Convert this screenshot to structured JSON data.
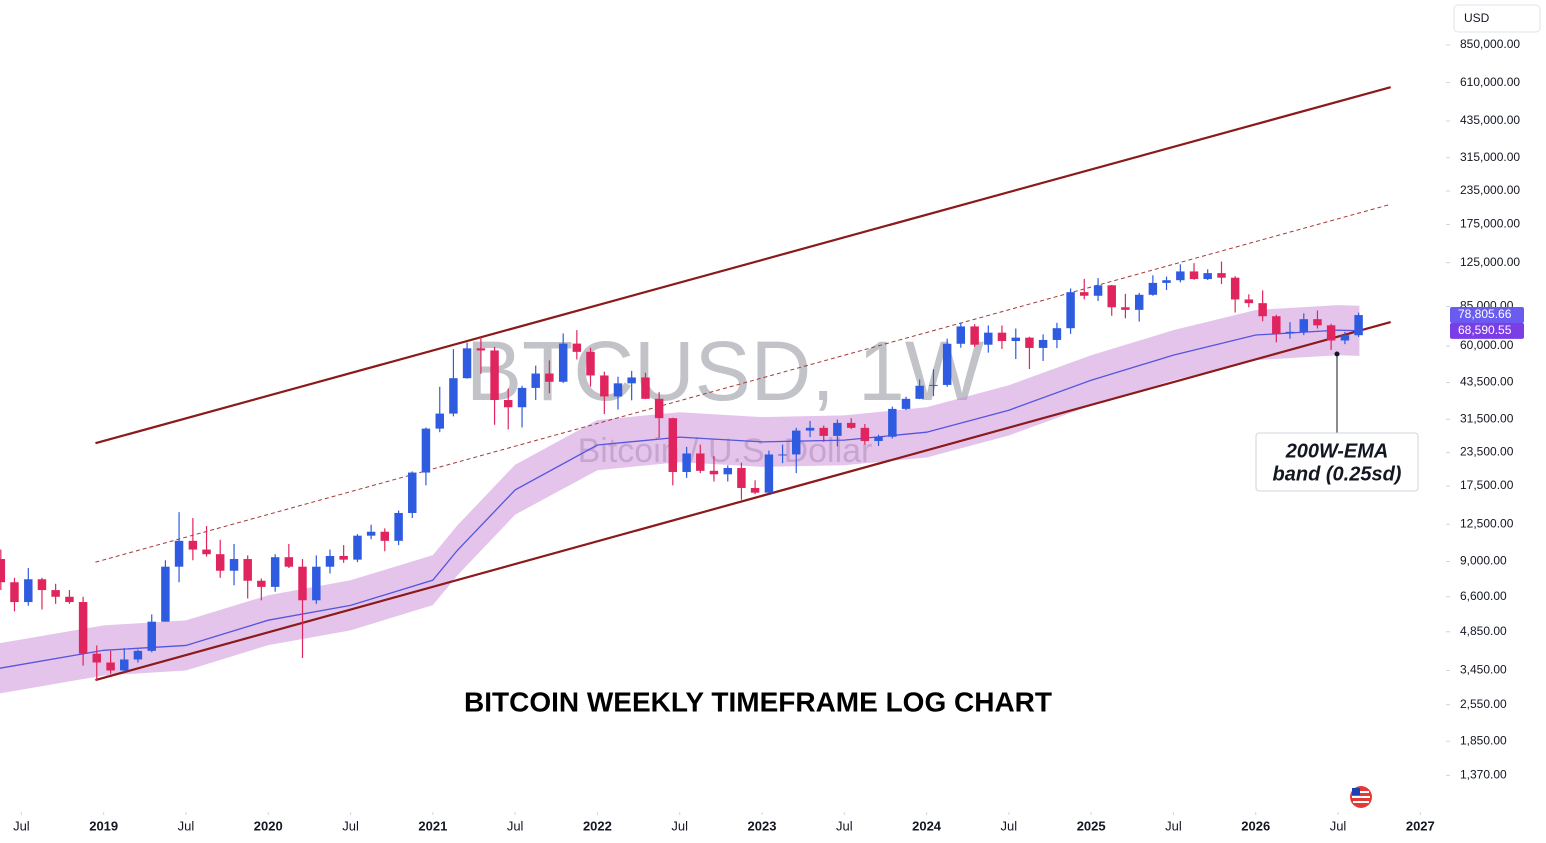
{
  "chart_data": {
    "type": "candlestick",
    "title": "BITCOIN WEEKLY TIMEFRAME LOG CHART",
    "watermark": {
      "symbol": "BTCUSD, 1W",
      "name": "Bitcoin / U.S. Dollar"
    },
    "currency": "USD",
    "log_scale": true,
    "xlim": [
      2018.37,
      2027.15
    ],
    "ylim": [
      1010,
      1262000
    ],
    "xticks": [
      {
        "value": 2018.5,
        "label": "Jul"
      },
      2019,
      {
        "value": 2019.5,
        "label": "Jul"
      },
      2020,
      {
        "value": 2020.5,
        "label": "Jul"
      },
      2021,
      {
        "value": 2021.5,
        "label": "Jul"
      },
      2022,
      {
        "value": 2022.5,
        "label": "Jul"
      },
      2023,
      {
        "value": 2023.5,
        "label": "Jul"
      },
      2024,
      {
        "value": 2024.5,
        "label": "Jul"
      },
      2025,
      {
        "value": 2025.5,
        "label": "Jul"
      },
      2026,
      {
        "value": 2026.5,
        "label": "Jul"
      },
      2027
    ],
    "yticks": [
      {
        "value": 850000,
        "label": "850,000.00"
      },
      {
        "value": 610000,
        "label": "610,000.00"
      },
      {
        "value": 435000,
        "label": "435,000.00"
      },
      {
        "value": 315000,
        "label": "315,000.00"
      },
      {
        "value": 235000,
        "label": "235,000.00"
      },
      {
        "value": 175000,
        "label": "175,000.00"
      },
      {
        "value": 125000,
        "label": "125,000.00"
      },
      {
        "value": 85000,
        "label": "85,000.00"
      },
      {
        "value": 60000,
        "label": "60,000.00"
      },
      {
        "value": 43500,
        "label": "43,500.00"
      },
      {
        "value": 31500,
        "label": "31,500.00"
      },
      {
        "value": 23500,
        "label": "23,500.00"
      },
      {
        "value": 17500,
        "label": "17,500.00"
      },
      {
        "value": 12500,
        "label": "12,500.00"
      },
      {
        "value": 9000,
        "label": "9,000.00"
      },
      {
        "value": 6600,
        "label": "6,600.00"
      },
      {
        "value": 4850,
        "label": "4,850.00"
      },
      {
        "value": 3450,
        "label": "3,450.00"
      },
      {
        "value": 2550,
        "label": "2,550.00"
      },
      {
        "value": 1850,
        "label": "1,850.00"
      },
      {
        "value": 1370,
        "label": "1,370.00"
      }
    ],
    "up_color": "#2f5be0",
    "down_color": "#e0245e",
    "candles": {
      "x": [
        2018.375,
        2018.458,
        2018.542,
        2018.625,
        2018.708,
        2018.792,
        2018.875,
        2018.958,
        2019.042,
        2019.125,
        2019.208,
        2019.292,
        2019.375,
        2019.458,
        2019.542,
        2019.625,
        2019.708,
        2019.792,
        2019.875,
        2019.958,
        2020.042,
        2020.125,
        2020.208,
        2020.292,
        2020.375,
        2020.458,
        2020.542,
        2020.625,
        2020.708,
        2020.792,
        2020.875,
        2020.958,
        2021.042,
        2021.125,
        2021.208,
        2021.292,
        2021.375,
        2021.458,
        2021.542,
        2021.625,
        2021.708,
        2021.792,
        2021.875,
        2021.958,
        2022.042,
        2022.125,
        2022.208,
        2022.292,
        2022.375,
        2022.458,
        2022.542,
        2022.625,
        2022.708,
        2022.792,
        2022.875,
        2022.958,
        2023.042,
        2023.125,
        2023.208,
        2023.292,
        2023.375,
        2023.458,
        2023.542,
        2023.625,
        2023.708,
        2023.792,
        2023.875,
        2023.958,
        2024.042,
        2024.125,
        2024.208,
        2024.292,
        2024.375,
        2024.458,
        2024.542,
        2024.625,
        2024.708,
        2024.792,
        2024.875,
        2024.958,
        2025.042,
        2025.125,
        2025.208,
        2025.292,
        2025.375,
        2025.458,
        2025.542,
        2025.625,
        2025.708,
        2025.792,
        2025.875,
        2025.958,
        2026.042,
        2026.125,
        2026.208,
        2026.292,
        2026.375,
        2026.458,
        2026.542,
        2026.625
      ],
      "open": [
        9200,
        7500,
        6300,
        7700,
        7000,
        6600,
        6300,
        4000,
        3700,
        3450,
        3800,
        4100,
        5300,
        8600,
        10800,
        10000,
        9600,
        8300,
        9200,
        7600,
        7200,
        9350,
        8600,
        6400,
        8600,
        9450,
        9150,
        11300,
        11700,
        10800,
        13800,
        19700,
        29000,
        33100,
        45200,
        58800,
        57700,
        37300,
        35000,
        41500,
        47100,
        43800,
        61300,
        57000,
        46300,
        38500,
        43200,
        45500,
        37700,
        31800,
        19800,
        23300,
        20000,
        19400,
        20500,
        17200,
        16500,
        23100,
        23100,
        28500,
        29200,
        27200,
        30500,
        29200,
        26000,
        27000,
        34500,
        37700,
        42300,
        42600,
        61200,
        71300,
        60700,
        67500,
        62700,
        64600,
        59000,
        63300,
        70200,
        96400,
        93400,
        102400,
        84400,
        82500,
        94200,
        104600,
        107100,
        115700,
        108200,
        114000,
        109500,
        90400,
        87500,
        78000,
        67000,
        68000,
        76000,
        72000,
        63000,
        66000
      ],
      "high": [
        10000,
        7800,
        8500,
        7800,
        7400,
        7000,
        6600,
        4300,
        4100,
        4200,
        4150,
        5650,
        9100,
        13900,
        13200,
        12300,
        10900,
        10500,
        9500,
        7750,
        9600,
        10500,
        9200,
        9500,
        10000,
        10400,
        11450,
        12450,
        12050,
        14100,
        19900,
        29300,
        41900,
        58400,
        61800,
        64900,
        59600,
        41300,
        42300,
        50500,
        52900,
        67000,
        69000,
        59100,
        47900,
        45800,
        48200,
        47400,
        40000,
        31900,
        24700,
        25200,
        22800,
        21000,
        21500,
        18400,
        23900,
        25200,
        29200,
        31000,
        29800,
        31400,
        31800,
        30200,
        27500,
        35200,
        38400,
        44700,
        48900,
        64000,
        73800,
        72700,
        71900,
        71900,
        70000,
        65100,
        66500,
        73600,
        99600,
        108300,
        109100,
        102800,
        95000,
        95800,
        111900,
        110600,
        123200,
        124500,
        117900,
        126200,
        111000,
        94600,
        97900,
        79000,
        74000,
        80000,
        82000,
        73000,
        68000,
        80500
      ],
      "low": [
        7000,
        5800,
        6100,
        5900,
        6200,
        6200,
        3600,
        3150,
        3350,
        3400,
        3700,
        4050,
        5300,
        7500,
        9100,
        9400,
        7800,
        7300,
        6500,
        6400,
        6900,
        8500,
        3850,
        6200,
        8100,
        8900,
        8950,
        10950,
        9850,
        10400,
        13200,
        17600,
        28100,
        32300,
        45000,
        47000,
        30000,
        28800,
        29300,
        37300,
        39600,
        43300,
        53300,
        42000,
        33000,
        34300,
        37200,
        37600,
        26700,
        17600,
        18800,
        19600,
        18200,
        18200,
        15500,
        16300,
        16500,
        21400,
        19600,
        26900,
        25800,
        24800,
        28900,
        25200,
        24900,
        26600,
        34100,
        37600,
        38600,
        41900,
        59100,
        59600,
        56600,
        58500,
        53500,
        49000,
        52600,
        58900,
        66800,
        90500,
        89200,
        78300,
        76600,
        74400,
        93400,
        98200,
        105100,
        107500,
        107300,
        103500,
        80600,
        84400,
        74600,
        62000,
        64000,
        66000,
        70000,
        58000,
        61000,
        65000
      ],
      "close": [
        7500,
        6300,
        7700,
        7000,
        6600,
        6300,
        4000,
        3700,
        3450,
        3800,
        4100,
        5300,
        8600,
        10800,
        10000,
        9600,
        8300,
        9200,
        7600,
        7200,
        9350,
        8600,
        6400,
        8600,
        9450,
        9150,
        11300,
        11700,
        10800,
        13800,
        19700,
        29000,
        33100,
        45200,
        58800,
        57700,
        37300,
        35000,
        41500,
        47100,
        43800,
        61300,
        57000,
        46300,
        38500,
        43200,
        45500,
        37700,
        31800,
        19800,
        23300,
        20000,
        19400,
        20500,
        17200,
        16500,
        23100,
        23100,
        28500,
        29200,
        27200,
        30500,
        29200,
        26000,
        27000,
        34500,
        37700,
        42300,
        42600,
        61200,
        71300,
        60700,
        67500,
        62700,
        64600,
        59000,
        63300,
        70200,
        96400,
        93400,
        102400,
        84400,
        82500,
        94200,
        104600,
        107100,
        115700,
        108200,
        114000,
        109500,
        90400,
        87500,
        78000,
        67000,
        68000,
        76000,
        72000,
        63000,
        66000,
        78805.66
      ]
    },
    "ema": {
      "color": "#5555dd",
      "band_color": "#c98ad8",
      "x": [
        2018.37,
        2019.0,
        2019.5,
        2020.0,
        2020.5,
        2021.0,
        2021.15,
        2021.5,
        2022.0,
        2022.5,
        2023.0,
        2023.5,
        2024.0,
        2024.5,
        2025.0,
        2025.5,
        2026.0,
        2026.5,
        2026.63
      ],
      "values": [
        3520,
        4120,
        4300,
        5370,
        6120,
        7640,
        9950,
        16900,
        25100,
        26900,
        25800,
        26200,
        28100,
        34100,
        44400,
        55400,
        66100,
        69000,
        68590.55
      ],
      "upper": [
        4390,
        5130,
        5360,
        6690,
        7630,
        9520,
        12400,
        21100,
        31300,
        33500,
        32100,
        32600,
        35000,
        42500,
        55300,
        69000,
        82400,
        86000,
        85500
      ],
      "lower": [
        2820,
        3300,
        3450,
        4310,
        4910,
        6130,
        7980,
        13600,
        20100,
        21600,
        20700,
        21000,
        22500,
        27300,
        35600,
        44400,
        53000,
        55300,
        55000
      ]
    },
    "lines": [
      {
        "x": [
          2018.95,
          2026.82
        ],
        "y": [
          25500,
          586000
        ],
        "color": "#8b1a1a",
        "style": "solid"
      },
      {
        "x": [
          2018.95,
          2026.82
        ],
        "y": [
          8950,
          209000
        ],
        "color": "#a33a3a",
        "style": "dashed"
      },
      {
        "x": [
          2018.95,
          2026.82
        ],
        "y": [
          3170,
          74100
        ],
        "color": "#8b1a1a",
        "style": "solid"
      }
    ],
    "price_labels": [
      {
        "value": 78805.66,
        "label": "78,805.66",
        "color": "#6a5cf0"
      },
      {
        "value": 68590.55,
        "label": "68,590.55",
        "color": "#7a3de6"
      }
    ],
    "annotation": {
      "lines": [
        "200W-EMA",
        "band (0.25sd)"
      ]
    }
  }
}
